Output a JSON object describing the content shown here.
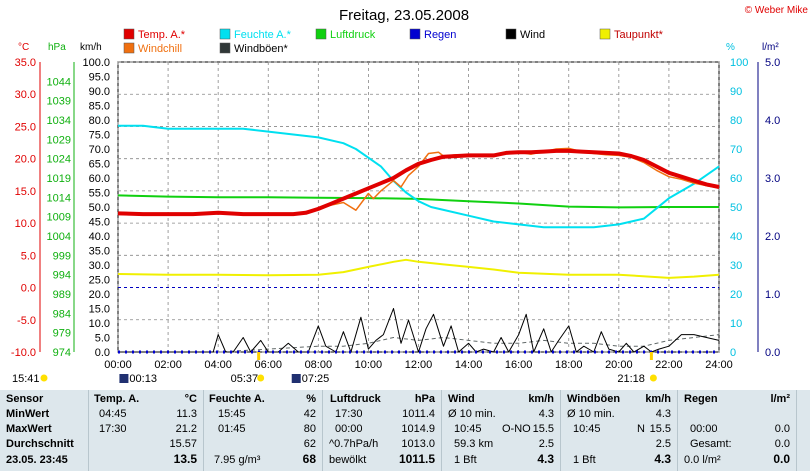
{
  "copyright": "© Weber Mike",
  "chart_data": {
    "type": "line",
    "title": "Freitag, 23.05.2008",
    "legend": [
      {
        "name": "Temp. A.*",
        "color": "#e00000"
      },
      {
        "name": "Feuchte A.*",
        "color": "#00e0f0"
      },
      {
        "name": "Luftdruck",
        "color": "#10d010"
      },
      {
        "name": "Regen",
        "color": "#0000d0"
      },
      {
        "name": "Wind",
        "color": "#000000"
      },
      {
        "name": "Taupunkt*",
        "color": "#f0f000"
      },
      {
        "name": "Windchill",
        "color": "#f07010"
      },
      {
        "name": "Windböen*",
        "color": "#303838"
      }
    ],
    "axes": {
      "temp": {
        "unit": "°C",
        "min": -10,
        "max": 35,
        "ticks": [
          "35.0",
          "30.0",
          "25.0",
          "20.0",
          "15.0",
          "10.0",
          "5.0",
          "0.0",
          "-5.0",
          "-10.0"
        ],
        "color": "#e00000"
      },
      "pressure": {
        "unit": "hPa",
        "min": 974,
        "max": 1049,
        "ticks": [
          "1044",
          "1039",
          "1034",
          "1029",
          "1024",
          "1019",
          "1014",
          "1009",
          "1004",
          "999",
          "994",
          "989",
          "984",
          "979",
          "974"
        ],
        "color": "#10b010"
      },
      "wind": {
        "unit": "km/h",
        "min": 0,
        "max": 100,
        "ticks": [
          "100.0",
          "95.0",
          "90.0",
          "85.0",
          "80.0",
          "75.0",
          "70.0",
          "65.0",
          "60.0",
          "55.0",
          "50.0",
          "45.0",
          "40.0",
          "35.0",
          "30.0",
          "25.0",
          "20.0",
          "15.0",
          "10.0",
          "5.0",
          "0.0"
        ]
      },
      "humidity": {
        "unit": "%",
        "min": 0,
        "max": 100,
        "ticks": [
          "100",
          "90",
          "80",
          "70",
          "60",
          "50",
          "40",
          "30",
          "20",
          "10",
          "0"
        ],
        "color": "#00c0e0"
      },
      "rain": {
        "unit": "l/m²",
        "min": 0,
        "max": 5,
        "ticks": [
          "5.0",
          "4.0",
          "3.0",
          "2.0",
          "1.0",
          "0.0"
        ],
        "color": "#000080"
      },
      "x": {
        "min": 0,
        "max": 24,
        "ticks": [
          "00:00",
          "02:00",
          "04:00",
          "06:00",
          "08:00",
          "10:00",
          "12:00",
          "14:00",
          "16:00",
          "18:00",
          "20:00",
          "22:00",
          "24:00"
        ]
      }
    },
    "grid": true,
    "series": {
      "temp": {
        "x": [
          0,
          1,
          2,
          3,
          4,
          5,
          6,
          7,
          7.5,
          8,
          8.5,
          9,
          9.5,
          10,
          10.5,
          11,
          11.5,
          12,
          12.5,
          13,
          14,
          15,
          15.5,
          16,
          16.5,
          17,
          17.5,
          18,
          18.5,
          19,
          19.5,
          20,
          20.5,
          21,
          21.5,
          22,
          22.5,
          23,
          23.5,
          24
        ],
        "y": [
          11.5,
          11.4,
          11.4,
          11.4,
          11.6,
          11.4,
          11.4,
          11.4,
          11.6,
          12.2,
          13.0,
          13.8,
          14.6,
          15.4,
          16.2,
          17.0,
          18.2,
          19.2,
          19.8,
          20.3,
          20.5,
          20.5,
          20.9,
          21.0,
          21.0,
          21.1,
          21.2,
          21.2,
          21.1,
          21.0,
          20.9,
          20.8,
          20.4,
          19.8,
          18.8,
          17.8,
          17.2,
          16.6,
          16.0,
          15.6
        ]
      },
      "windchill": {
        "x": [
          0,
          1,
          2,
          3,
          4,
          5,
          6,
          7,
          7.5,
          8,
          8.5,
          9,
          9.5,
          10,
          10.2,
          10.5,
          11,
          11.3,
          11.6,
          12,
          12.4,
          12.8,
          13,
          13.5,
          14,
          15,
          15.5,
          16,
          16.5,
          17,
          17.5,
          18,
          18.5,
          19,
          19.5,
          20,
          20.5,
          21,
          21.5,
          22,
          22.5,
          23,
          23.5,
          24
        ],
        "y": [
          11.5,
          11.4,
          11.4,
          11.4,
          11.6,
          11.4,
          11.4,
          11.4,
          11.6,
          12.2,
          12.8,
          13.2,
          12.0,
          14.6,
          13.8,
          15.0,
          16.6,
          15.6,
          17.4,
          18.8,
          20.8,
          21.0,
          20.4,
          20.6,
          20.5,
          20.3,
          20.9,
          21.0,
          20.7,
          21.1,
          21.5,
          21.6,
          21.1,
          20.8,
          20.6,
          20.5,
          20.2,
          19.4,
          18.2,
          17.2,
          16.8,
          16.2,
          15.8,
          15.5
        ]
      },
      "humidity": {
        "x": [
          0,
          1,
          2,
          3,
          4,
          5,
          6,
          7,
          8,
          9,
          9.5,
          10,
          10.5,
          11,
          11.5,
          12,
          12.5,
          13,
          14,
          15,
          16,
          17,
          18,
          19,
          20,
          21,
          22,
          23,
          24
        ],
        "y": [
          78,
          78,
          77,
          77,
          77,
          77,
          76,
          75,
          74,
          72,
          70,
          67,
          64,
          59,
          55,
          52,
          50,
          49,
          47,
          45,
          44,
          43,
          43,
          43,
          44,
          46,
          53,
          58,
          64
        ]
      },
      "pressure": {
        "x": [
          0,
          2,
          4,
          6,
          8,
          10,
          12,
          14,
          16,
          18,
          20,
          22,
          24
        ],
        "y": [
          1014.5,
          1014.2,
          1014.0,
          1014.0,
          1013.9,
          1013.8,
          1013.6,
          1013.0,
          1012.4,
          1011.6,
          1011.4,
          1011.5,
          1011.5
        ]
      },
      "dewpoint": {
        "x": [
          0,
          2,
          4,
          6,
          8,
          9,
          10,
          11,
          11.5,
          12,
          13,
          14,
          15,
          16,
          18,
          20,
          22,
          23,
          24
        ],
        "y": [
          2.1,
          2.0,
          2.0,
          1.9,
          2.0,
          2.4,
          3.2,
          4.0,
          4.3,
          4.0,
          3.6,
          3.2,
          2.8,
          2.3,
          2.0,
          2.0,
          1.5,
          1.7,
          2.0
        ]
      },
      "wind": {
        "x": [
          0,
          1,
          2,
          3,
          3.2,
          3.5,
          3.8,
          4,
          4.3,
          4.6,
          5,
          5.3,
          5.7,
          6,
          6.4,
          6.8,
          7.2,
          7.6,
          8,
          8.3,
          8.7,
          9,
          9.3,
          9.7,
          10,
          10.3,
          10.6,
          11,
          11.3,
          11.6,
          12,
          12.3,
          12.6,
          13,
          13.3,
          13.6,
          14,
          14.3,
          14.6,
          15,
          15.3,
          15.6,
          16,
          16.3,
          16.6,
          17,
          17.3,
          17.6,
          18,
          18.3,
          18.6,
          19,
          19.3,
          19.6,
          20,
          20.3,
          20.6,
          21,
          21.3,
          21.6,
          22,
          22.5,
          23,
          23.5,
          24
        ],
        "y": [
          0,
          0,
          0,
          0,
          0,
          0,
          0,
          6,
          0,
          0,
          5,
          0,
          4,
          0,
          0,
          3,
          0,
          0,
          9,
          2,
          0,
          7,
          0,
          12,
          1,
          4,
          6,
          15,
          3,
          11,
          0,
          8,
          13,
          2,
          9,
          0,
          3,
          0,
          1,
          0,
          5,
          0,
          6,
          13,
          0,
          8,
          0,
          4,
          9,
          0,
          2,
          0,
          7,
          1,
          0,
          3,
          0,
          2,
          0,
          1,
          2,
          6,
          6,
          5,
          4
        ]
      },
      "gusts": {
        "x": [
          0,
          4,
          6,
          8,
          9,
          10,
          11,
          12,
          13,
          14,
          15,
          16,
          17,
          18,
          19,
          20,
          21,
          22,
          23,
          24
        ],
        "y": [
          0,
          0,
          1,
          2,
          2,
          3,
          5,
          4,
          5,
          4,
          3,
          3,
          4,
          3,
          3,
          2,
          2,
          4,
          5,
          6
        ]
      },
      "rain": {
        "x": [
          0,
          24
        ],
        "y": [
          0,
          0
        ]
      }
    },
    "markers": {
      "time_start": "15:41",
      "sunrise": "05:37",
      "sunset": "21:18",
      "moonset": "00:13",
      "moonrise": "07:25"
    }
  },
  "table": {
    "headers": {
      "sensor": "Sensor",
      "temp": "Temp. A.",
      "temp_unit": "°C",
      "hum": "Feuchte A.",
      "hum_unit": "%",
      "press": "Luftdruck",
      "press_unit": "hPa",
      "wind": "Wind",
      "wind_unit": "km/h",
      "gust": "Windböen",
      "gust_unit": "km/h",
      "rain": "Regen",
      "rain_unit": "l/m²"
    },
    "rows": [
      {
        "label": "MinWert",
        "temp_t": "04:45",
        "temp_v": "11.3",
        "hum_t": "15:45",
        "hum_v": "42",
        "press_t": "17:30",
        "press_v": "1011.4",
        "wind_a": "Ø 10 min.",
        "wind_b": "",
        "wind_v": "4.3",
        "gust_a": "Ø 10 min.",
        "gust_b": "",
        "gust_v": "4.3",
        "rain_t": "",
        "rain_v": ""
      },
      {
        "label": "MaxWert",
        "temp_t": "17:30",
        "temp_v": "21.2",
        "hum_t": "01:45",
        "hum_v": "80",
        "press_t": "00:00",
        "press_v": "1014.9",
        "wind_a": "10:45",
        "wind_b": "O-NO",
        "wind_v": "15.5",
        "gust_a": "10:45",
        "gust_b": "N",
        "gust_v": "15.5",
        "rain_t": "00:00",
        "rain_v": "0.0"
      },
      {
        "label": "Durchschnitt",
        "temp_t": "",
        "temp_v": "15.57",
        "hum_t": "",
        "hum_v": "62",
        "press_t": "^0.7hPa/h",
        "press_v": "1013.0",
        "wind_a": "59.3 km",
        "wind_b": "",
        "wind_v": "2.5",
        "gust_a": "",
        "gust_b": "",
        "gust_v": "2.5",
        "rain_t": "Gesamt:",
        "rain_v": "0.0"
      },
      {
        "label": "23.05. 23:45",
        "temp_t": "",
        "temp_v": "13.5",
        "hum_t": "7.95 g/m³",
        "hum_v": "68",
        "press_t": "bewölkt",
        "press_v": "1011.5",
        "wind_a": "1 Bft",
        "wind_b": "",
        "wind_v": "4.3",
        "gust_a": "1 Bft",
        "gust_b": "",
        "gust_v": "4.3",
        "rain_t": "0.0 l/m²",
        "rain_v": "0.0"
      }
    ]
  }
}
